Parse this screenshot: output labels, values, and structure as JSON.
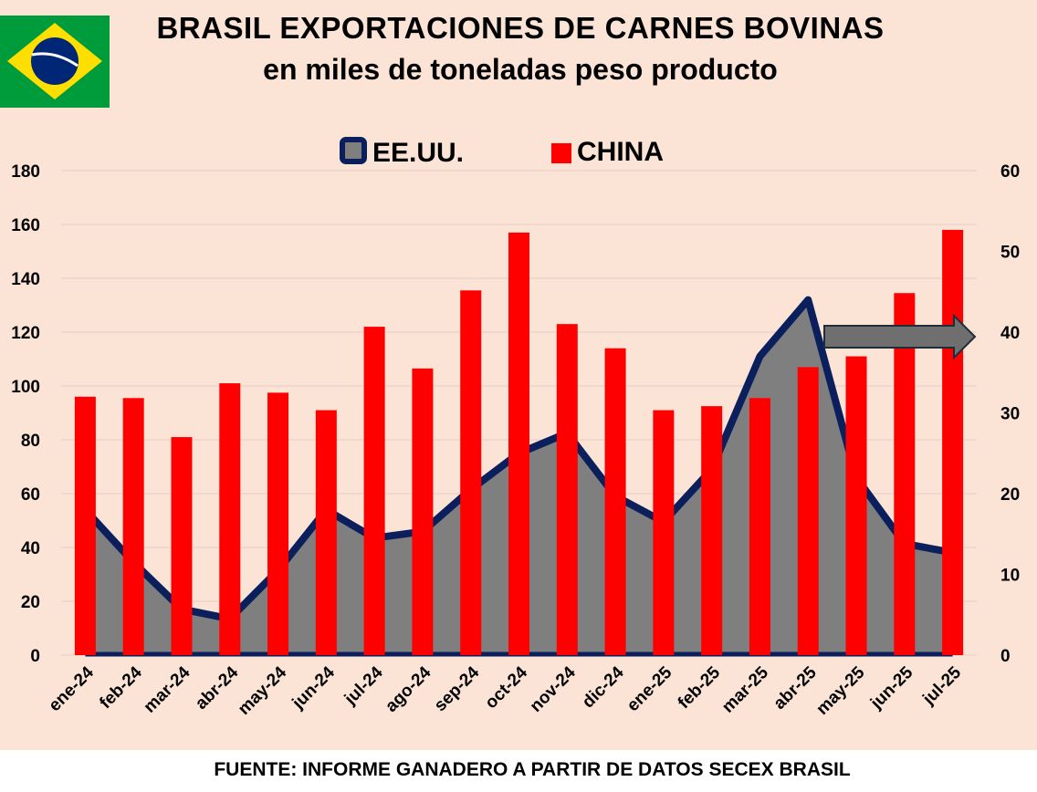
{
  "title": "BRASIL EXPORTACIONES DE CARNES BOVINAS",
  "subtitle": "en miles de toneladas peso producto",
  "source": "FUENTE: INFORME GANADERO A PARTIR DE DATOS SECEX BRASIL",
  "legend": {
    "usa": "EE.UU.",
    "china": "CHINA"
  },
  "colors": {
    "usa_fill": "#7f7f7f",
    "usa_line": "#0a1f5c",
    "china": "#ff0000",
    "background": "#fbe3d6",
    "grid": "#e6cfc2"
  },
  "flag": "brazil-flag-icon",
  "annotation": "arrow-right-icon",
  "chart_data": {
    "type": "bar",
    "categories": [
      "ene-24",
      "feb-24",
      "mar-24",
      "abr-24",
      "may-24",
      "jun-24",
      "jul-24",
      "ago-24",
      "sep-24",
      "oct-24",
      "nov-24",
      "dic-24",
      "ene-25",
      "feb-25",
      "mar-25",
      "abr-25",
      "may-25",
      "jun-25",
      "jul-25"
    ],
    "series": [
      {
        "name": "EE.UU.",
        "type": "area",
        "axis": "right",
        "values": [
          18,
          11.5,
          5.7,
          4.5,
          10.5,
          18,
          14.5,
          15.3,
          20.5,
          25,
          27.5,
          19.7,
          16.5,
          23,
          37,
          44,
          22,
          13.8,
          12.7
        ]
      },
      {
        "name": "CHINA",
        "type": "bar",
        "axis": "left",
        "values": [
          96,
          95.5,
          81,
          101,
          97.5,
          91,
          122,
          106.5,
          135.5,
          157,
          123,
          114,
          91,
          92.5,
          95.5,
          107,
          111,
          134.5,
          158
        ]
      }
    ],
    "ylim_left": [
      0,
      180
    ],
    "yticks_left": [
      0,
      20,
      40,
      60,
      80,
      100,
      120,
      140,
      160,
      180
    ],
    "ylim_right": [
      0,
      60
    ],
    "yticks_right": [
      0,
      10,
      20,
      30,
      40,
      50,
      60
    ],
    "grid": true,
    "legend_position": "top-center"
  }
}
